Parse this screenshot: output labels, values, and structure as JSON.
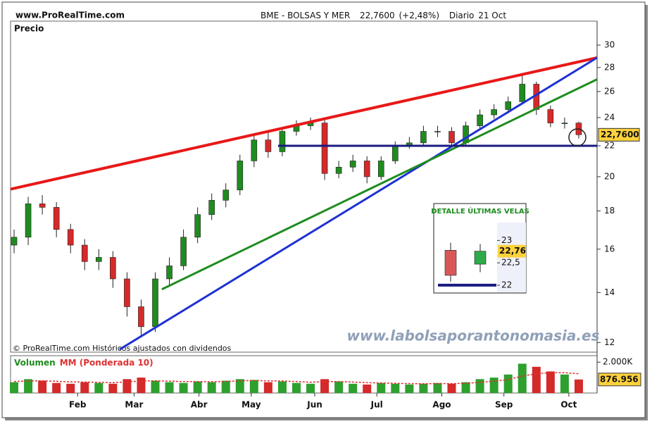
{
  "header": {
    "site": "www.ProRealTime.com",
    "instrument": "BME - BOLSAS Y MER",
    "price": "22,7600",
    "change": "(+2,48%)",
    "period": "Diario",
    "date": "21 Oct"
  },
  "chart_data": [
    {
      "type": "candlestick",
      "label": "Precio",
      "note": "© ProRealTime.com Históricos ajustados con dividendos",
      "watermark": "www.labolsaporantonomasia.es",
      "x": [
        0,
        1,
        2,
        3,
        4,
        5,
        6,
        7,
        8,
        9,
        10,
        11,
        12,
        13,
        14,
        15,
        16,
        17,
        18,
        19,
        20,
        21,
        22,
        23,
        24,
        25,
        26,
        27,
        28,
        29,
        30,
        31,
        32,
        33,
        34,
        35,
        36,
        37,
        38,
        39,
        40
      ],
      "open": [
        16.2,
        16.6,
        18.4,
        18.2,
        17.0,
        16.2,
        15.4,
        15.6,
        14.6,
        13.4,
        12.6,
        14.6,
        15.2,
        16.6,
        17.8,
        18.6,
        19.2,
        21.0,
        22.4,
        21.6,
        23.0,
        23.4,
        23.6,
        20.2,
        20.6,
        21.0,
        20.0,
        21.0,
        22.0,
        22.2,
        23.0,
        23.0,
        22.2,
        23.4,
        24.2,
        24.6,
        25.2,
        26.6,
        24.6,
        23.6,
        23.6
      ],
      "high": [
        17.0,
        18.8,
        18.9,
        18.5,
        17.3,
        16.5,
        16.0,
        15.9,
        14.9,
        13.7,
        14.9,
        15.6,
        17.0,
        18.2,
        19.0,
        19.6,
        21.4,
        22.8,
        22.9,
        23.3,
        23.8,
        24.0,
        23.8,
        21.0,
        21.4,
        21.3,
        21.3,
        22.3,
        22.6,
        23.4,
        23.4,
        23.3,
        23.7,
        24.6,
        25.0,
        25.6,
        27.4,
        26.8,
        24.9,
        24.0,
        23.7
      ],
      "low": [
        15.8,
        16.2,
        17.8,
        16.6,
        15.8,
        15.0,
        15.0,
        14.2,
        13.0,
        12.2,
        12.4,
        14.3,
        15.0,
        16.3,
        17.5,
        18.2,
        18.9,
        20.6,
        21.2,
        21.3,
        22.7,
        23.1,
        19.8,
        19.9,
        20.3,
        19.6,
        19.8,
        20.8,
        21.8,
        22.0,
        22.6,
        21.9,
        22.0,
        23.2,
        23.9,
        24.3,
        25.0,
        24.2,
        23.3,
        23.2,
        22.5
      ],
      "close": [
        16.6,
        18.4,
        18.2,
        17.0,
        16.2,
        15.4,
        15.6,
        14.6,
        13.4,
        12.6,
        14.6,
        15.2,
        16.6,
        17.8,
        18.6,
        19.2,
        21.0,
        22.4,
        21.6,
        23.0,
        23.4,
        23.6,
        20.2,
        20.6,
        21.0,
        20.0,
        21.0,
        22.0,
        22.2,
        23.0,
        23.0,
        22.2,
        23.4,
        24.2,
        24.6,
        25.2,
        26.6,
        24.6,
        23.6,
        23.6,
        22.76
      ],
      "up_color": "#1e8c1e",
      "down_color": "#d42a2a",
      "xlim": [
        -0.25,
        41.3
      ],
      "xticks": [
        {
          "value": 4.5,
          "label": "Feb"
        },
        {
          "value": 8.5,
          "label": "Mar"
        },
        {
          "value": 13.1,
          "label": "Abr"
        },
        {
          "value": 16.8,
          "label": "May"
        },
        {
          "value": 21.3,
          "label": "Jun"
        },
        {
          "value": 25.7,
          "label": "Jul"
        },
        {
          "value": 30.3,
          "label": "Ago"
        },
        {
          "value": 34.7,
          "label": "Sep"
        },
        {
          "value": 39.3,
          "label": "Oct"
        }
      ],
      "ylim": [
        11.65,
        32.3
      ],
      "yticks": [
        12,
        14,
        16,
        18,
        20,
        22,
        24,
        26,
        28,
        30
      ],
      "log_scale": true,
      "last": {
        "value": 22.76,
        "label": "22,7600"
      },
      "trendlines": [
        {
          "color": "#e81818",
          "x": [
            -0.25,
            41.3
          ],
          "values": [
            19.25,
            28.86
          ]
        },
        {
          "color": "#1e32d2",
          "x": [
            7.48,
            41.3
          ],
          "values": [
            11.75,
            28.86
          ]
        },
        {
          "color": "#1e8c1e",
          "x": [
            10.47,
            41.3
          ],
          "values": [
            14.14,
            27.0
          ]
        },
        {
          "color": "#1a1a80",
          "x": [
            18.7,
            41.3
          ],
          "values": [
            22,
            22
          ]
        }
      ]
    },
    {
      "type": "bar",
      "x": [
        0,
        1,
        2,
        3,
        4,
        5,
        6,
        7,
        8,
        9,
        10,
        11,
        12,
        13,
        14,
        15,
        16,
        17,
        18,
        19,
        20,
        21,
        22,
        23,
        24,
        25,
        26,
        27,
        28,
        29,
        30,
        31,
        32,
        33,
        34,
        35,
        36,
        37,
        38,
        39,
        40
      ],
      "series": [
        {
          "name": "Volumen",
          "color": "#2ea02e",
          "values": [
            700000,
            900000,
            800000,
            650000,
            600000,
            700000,
            650000,
            600000,
            900000,
            1000000,
            800000,
            700000,
            650000,
            750000,
            700000,
            800000,
            900000,
            850000,
            700000,
            750000,
            650000,
            600000,
            900000,
            750000,
            600000,
            550000,
            650000,
            600000,
            550000,
            600000,
            650000,
            600000,
            700000,
            900000,
            1000000,
            1200000,
            1900000,
            1700000,
            1400000,
            1200000,
            876956
          ]
        },
        {
          "name": "MM (Ponderada 10)",
          "color": "#e03030",
          "type": "line",
          "values": [
            750000,
            780000,
            790000,
            760000,
            720000,
            710000,
            690000,
            670000,
            720000,
            780000,
            790000,
            770000,
            740000,
            740000,
            730000,
            750000,
            790000,
            810000,
            790000,
            780000,
            740000,
            700000,
            740000,
            740000,
            710000,
            670000,
            650000,
            630000,
            610000,
            600000,
            610000,
            610000,
            630000,
            690000,
            770000,
            870000,
            1100000,
            1250000,
            1320000,
            1320000,
            1250000
          ]
        }
      ],
      "down_color": "#d42a2a",
      "ylim": [
        0,
        2420000
      ],
      "yticks": [
        {
          "value": 2000000,
          "label": "2.000K"
        }
      ],
      "last": {
        "value": 876956,
        "label": "876.956"
      }
    },
    {
      "type": "candlestick",
      "title": "DETALLE ÚLTIMAS VELAS",
      "open": [
        22.78,
        22.47
      ],
      "high": [
        22.95,
        22.92
      ],
      "low": [
        22.08,
        22.29
      ],
      "close": [
        22.22,
        22.76
      ],
      "up_color": "#2eaa4a",
      "down_color": "#d85858",
      "ylim": [
        21.92,
        23.4
      ],
      "yticks": [
        23,
        {
          "value": 22.5,
          "label": "22,5"
        },
        22
      ],
      "last": {
        "value": 22.76,
        "label": "22,76"
      },
      "level": 22
    }
  ]
}
